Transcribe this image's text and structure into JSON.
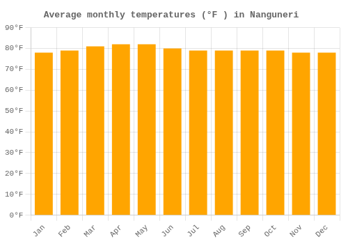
{
  "chart_data": {
    "type": "bar",
    "title": "Average monthly temperatures (°F ) in Nanguneri",
    "categories": [
      "Jan",
      "Feb",
      "Mar",
      "Apr",
      "May",
      "Jun",
      "Jul",
      "Aug",
      "Sep",
      "Oct",
      "Nov",
      "Dec"
    ],
    "values": [
      78,
      79,
      81,
      82,
      82,
      80,
      79,
      79,
      79,
      79,
      78,
      78
    ],
    "color": "#FFA500",
    "ylim": [
      0,
      90
    ],
    "yticks": [
      {
        "value": 0,
        "label": "0°F"
      },
      {
        "value": 10,
        "label": "10°F"
      },
      {
        "value": 20,
        "label": "20°F"
      },
      {
        "value": 30,
        "label": "30°F"
      },
      {
        "value": 40,
        "label": "40°F"
      },
      {
        "value": 50,
        "label": "50°F"
      },
      {
        "value": 60,
        "label": "60°F"
      },
      {
        "value": 70,
        "label": "70°F"
      },
      {
        "value": 80,
        "label": "80°F"
      },
      {
        "value": 90,
        "label": "90°F"
      }
    ],
    "grid": true
  }
}
